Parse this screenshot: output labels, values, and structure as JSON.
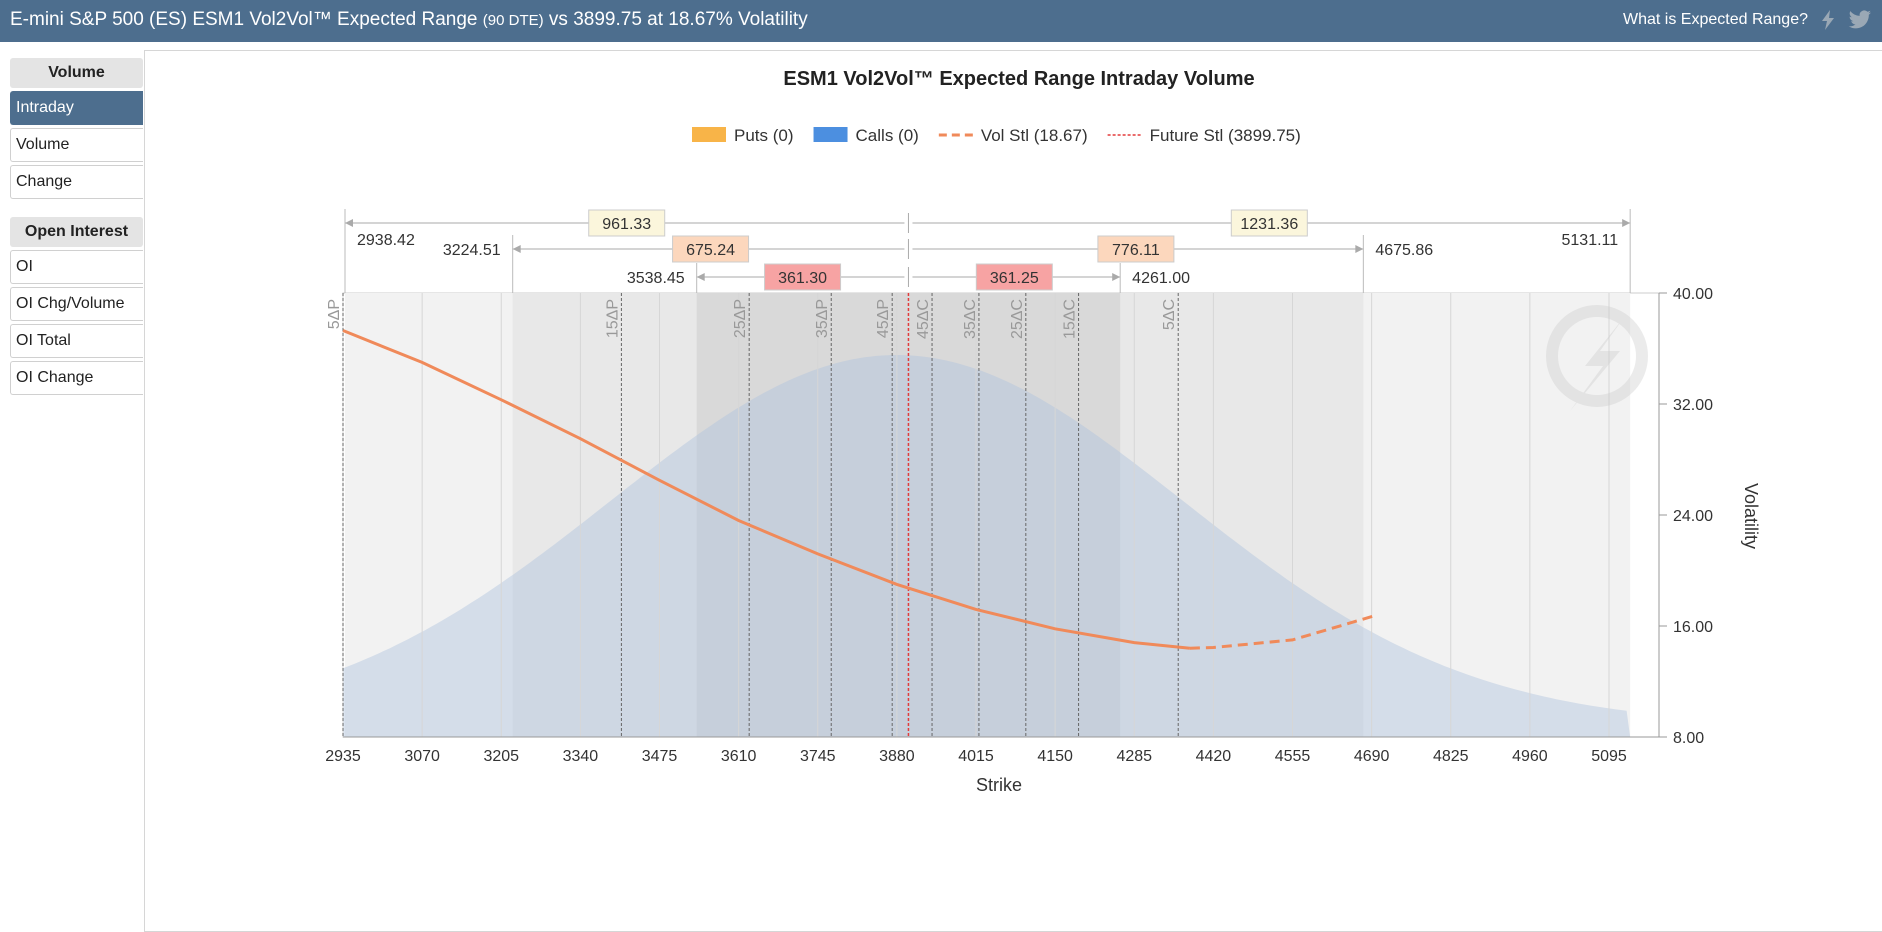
{
  "header": {
    "title_main": "E-mini S&P 500 (ES) ESM1 Vol2Vol™ Expected Range",
    "title_dte": "(90 DTE)",
    "title_rest": "vs 3899.75 at 18.67% Volatility",
    "help_link": "What is Expected Range?",
    "icons": [
      "lightning-icon",
      "twitter-icon"
    ]
  },
  "sidebar": {
    "volume_header": "Volume",
    "volume_items": [
      {
        "label": "Intraday",
        "active": true
      },
      {
        "label": "Volume",
        "active": false
      },
      {
        "label": "Change",
        "active": false
      }
    ],
    "oi_header": "Open Interest",
    "oi_items": [
      {
        "label": "OI",
        "active": false
      },
      {
        "label": "OI Chg/Volume",
        "active": false
      },
      {
        "label": "OI Total",
        "active": false
      },
      {
        "label": "OI Change",
        "active": false
      }
    ]
  },
  "chart_data": {
    "type": "line",
    "title": "ESM1 Vol2Vol™ Expected Range Intraday Volume",
    "xlabel": "Strike",
    "ylabel": "Volatility",
    "xlim": [
      2935,
      5131.11
    ],
    "ylim": [
      8,
      40
    ],
    "x_ticks": [
      2935,
      3070,
      3205,
      3340,
      3475,
      3610,
      3745,
      3880,
      4015,
      4150,
      4285,
      4420,
      4555,
      4690,
      4825,
      4960,
      5095
    ],
    "y_ticks": [
      "8.00",
      "16.00",
      "24.00",
      "32.00",
      "40.00"
    ],
    "legend": [
      {
        "label": "Puts (0)",
        "color": "#f8b448",
        "kind": "box"
      },
      {
        "label": "Calls (0)",
        "color": "#4c8fe0",
        "kind": "box"
      },
      {
        "label": "Vol Stl (18.67)",
        "color": "#f08a5a",
        "kind": "dash"
      },
      {
        "label": "Future Stl (3899.75)",
        "color": "#e33b3b",
        "kind": "dot"
      }
    ],
    "series": [
      {
        "name": "Puts (0)",
        "values": []
      },
      {
        "name": "Calls (0)",
        "values": []
      },
      {
        "name": "Vol Stl (18.67)",
        "x": [
          2935,
          3070,
          3205,
          3340,
          3475,
          3610,
          3745,
          3880,
          4015,
          4150,
          4285,
          4380,
          4420,
          4555,
          4700
        ],
        "y": [
          37.3,
          35.0,
          32.3,
          29.5,
          26.5,
          23.6,
          21.2,
          19.0,
          17.2,
          15.8,
          14.8,
          14.4,
          14.45,
          15.0,
          16.8
        ]
      }
    ],
    "future_settle": 3899.75,
    "delta_lines": [
      {
        "label": "5ΔP",
        "x": 2935
      },
      {
        "label": "15ΔP",
        "x": 3410
      },
      {
        "label": "25ΔP",
        "x": 3628
      },
      {
        "label": "35ΔP",
        "x": 3768
      },
      {
        "label": "45ΔP",
        "x": 3872
      },
      {
        "label": "45ΔC",
        "x": 3940
      },
      {
        "label": "35ΔC",
        "x": 4020
      },
      {
        "label": "25ΔC",
        "x": 4100
      },
      {
        "label": "15ΔC",
        "x": 4190
      },
      {
        "label": "5ΔC",
        "x": 4360
      }
    ],
    "ranges": [
      {
        "low": "2938.42",
        "high": "5131.11",
        "down": "961.33",
        "up": "1231.36",
        "fill": "#fbf6dc",
        "shade": "#f2f2f2"
      },
      {
        "low": "3224.51",
        "high": "4675.86",
        "down": "675.24",
        "up": "776.11",
        "fill": "#fcd7bd",
        "shade": "#e8e8e8"
      },
      {
        "low": "3538.45",
        "high": "4261.00",
        "down": "361.30",
        "up": "361.25",
        "fill": "#f7a3a3",
        "shade": "#d9d9d9"
      }
    ],
    "grid": true
  }
}
